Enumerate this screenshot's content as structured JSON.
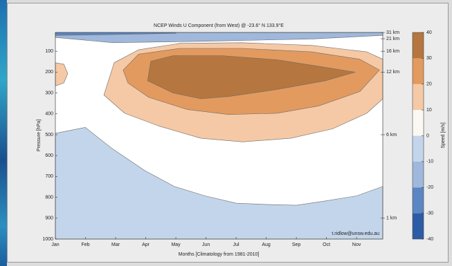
{
  "chart_data": {
    "type": "contour",
    "title": "NCEP Winds U Component (from West) @ -23.6° N 133.9°E",
    "xlabel": "Months [Climatology from 1981-2010]",
    "ylabel": "Pressure [hPa]",
    "credit": "t.ridlow@unsw.edu.au",
    "xlim": [
      1,
      11.87
    ],
    "xticks": [
      {
        "value": 1,
        "label": "Jan"
      },
      {
        "value": 2,
        "label": "Feb"
      },
      {
        "value": 3,
        "label": "Mar"
      },
      {
        "value": 4,
        "label": "Apr"
      },
      {
        "value": 5,
        "label": "May"
      },
      {
        "value": 6,
        "label": "Jun"
      },
      {
        "value": 7,
        "label": "Jul"
      },
      {
        "value": 8,
        "label": "Aug"
      },
      {
        "value": 9,
        "label": "Sep"
      },
      {
        "value": 10,
        "label": "Oct"
      },
      {
        "value": 11,
        "label": "Nov"
      }
    ],
    "ylim": [
      1000,
      10
    ],
    "yticks": [
      100,
      200,
      300,
      400,
      500,
      600,
      700,
      800,
      900,
      1000
    ],
    "y2lim": [
      1000,
      10
    ],
    "y2ticks": [
      {
        "value": 10,
        "label": "31 km"
      },
      {
        "value": 40,
        "label": "21 km"
      },
      {
        "value": 100,
        "label": "16 km"
      },
      {
        "value": 200,
        "label": "12 km"
      },
      {
        "value": 500,
        "label": "6 km"
      },
      {
        "value": 900,
        "label": "1 km"
      }
    ],
    "colorbar": {
      "label": "Speed [m/s]",
      "lim": [
        -40,
        40
      ],
      "ticks": [
        -40,
        -30,
        -20,
        -10,
        0,
        10,
        20,
        30,
        40
      ],
      "colors": [
        "#2d5ca6",
        "#5a86c4",
        "#9fb8dc",
        "#c3d5eb",
        "#fbf8f4",
        "#f5c9a5",
        "#e39a5f",
        "#b5773f"
      ]
    },
    "contours": [
      {
        "level": -10,
        "x": [
          1,
          1,
          1.99,
          2.91,
          3.97,
          4.95,
          5.97,
          7.0,
          7.99,
          9.0,
          9.99,
          11.0,
          11.87,
          11.87
        ],
        "y": [
          1000,
          493,
          465,
          569,
          672,
          748,
          793,
          828,
          834,
          838,
          817,
          793,
          748,
          1000
        ]
      },
      {
        "level": -20,
        "x": [
          1,
          11.87,
          11.87,
          9.51,
          5.97,
          2.91,
          1
        ],
        "y": [
          10,
          10,
          24,
          41,
          52,
          59,
          34
        ]
      },
      {
        "level": -30,
        "x": [
          1,
          5.0,
          5.0,
          3.0,
          1
        ],
        "y": [
          10,
          10,
          14,
          20,
          24
        ]
      },
      {
        "level": 10,
        "x": [
          2.61,
          2.95,
          3.76,
          5.14,
          7.21,
          9.51,
          11.34,
          11.87,
          11.87,
          11.34,
          10.2,
          8.82,
          7.21,
          5.83,
          4.45,
          3.3
        ],
        "y": [
          310,
          155,
          93,
          62,
          59,
          72,
          103,
          138,
          328,
          397,
          472,
          517,
          534,
          517,
          459,
          397
        ]
      },
      {
        "level": 10,
        "x": [
          1,
          1.28,
          1.41,
          1.28,
          1
        ],
        "y": [
          155,
          162,
          207,
          252,
          266
        ]
      },
      {
        "level": 20,
        "x": [
          3.25,
          3.76,
          5.14,
          7.21,
          9.51,
          11.11,
          11.76,
          11.11,
          9.74,
          8.36,
          6.75,
          5.37,
          4.1,
          3.41
        ],
        "y": [
          190,
          114,
          86,
          86,
          103,
          138,
          190,
          293,
          362,
          397,
          403,
          379,
          321,
          252
        ]
      },
      {
        "level": 30,
        "x": [
          4.06,
          4.17,
          4.91,
          6.52,
          8.36,
          9.74,
          10.95,
          9.97,
          8.36,
          6.75,
          5.83,
          4.91
        ],
        "y": [
          241,
          148,
          121,
          121,
          141,
          172,
          200,
          241,
          283,
          317,
          328,
          300
        ]
      }
    ]
  }
}
